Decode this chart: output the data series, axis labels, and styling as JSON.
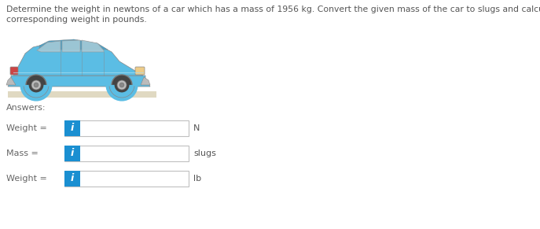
{
  "title_line1": "Determine the weight in newtons of a car which has a mass of 1956 kg. Convert the given mass of the car to slugs and calculate the",
  "title_line2": "corresponding weight in pounds.",
  "answers_label": "Answers:",
  "rows": [
    {
      "label": "Weight =",
      "unit": "N"
    },
    {
      "label": "Mass =",
      "unit": "slugs"
    },
    {
      "label": "Weight =",
      "unit": "lb"
    }
  ],
  "bg_color": "#ffffff",
  "title_fontsize": 7.8,
  "label_fontsize": 8.0,
  "unit_fontsize": 8.0,
  "answers_fontsize": 8.0,
  "box_color": "#f5f5f5",
  "box_edge_color": "#c0c0c0",
  "icon_bg_color": "#1a8fd1",
  "icon_text_color": "#ffffff",
  "icon_text": "i",
  "title_color": "#555555",
  "label_color": "#666666",
  "unit_color": "#555555",
  "car_body_color": "#5bbde4",
  "car_body_dark": "#4a9fc4",
  "car_window_color": "#aaccd8",
  "car_roof_color": "#5bbde4",
  "car_trim_color": "#888888",
  "car_wheel_color": "#555555",
  "car_ground_color": "#d4c9a8"
}
